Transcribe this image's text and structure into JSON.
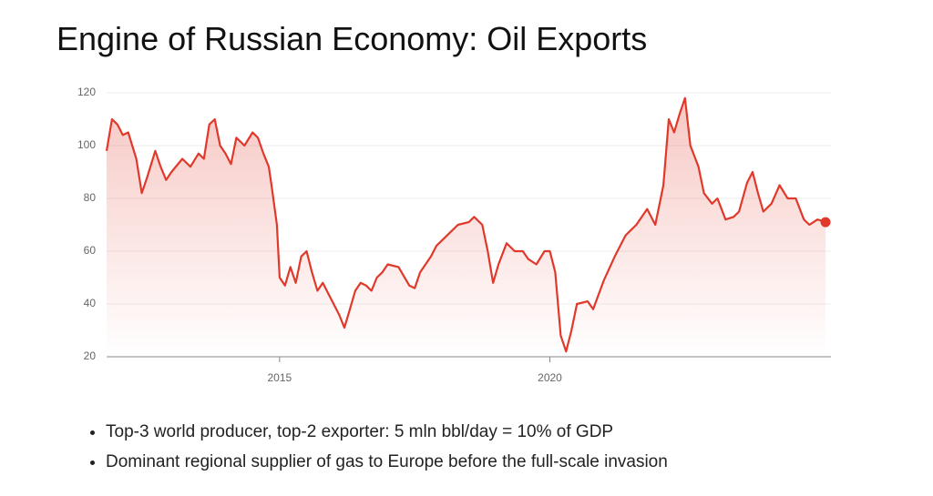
{
  "chart_data": {
    "type": "line",
    "title": "Engine of Russian Economy: Oil Exports",
    "x": [
      2011.8,
      2011.9,
      2012.0,
      2012.1,
      2012.2,
      2012.35,
      2012.45,
      2012.55,
      2012.7,
      2012.8,
      2012.9,
      2013.0,
      2013.2,
      2013.35,
      2013.5,
      2013.6,
      2013.7,
      2013.8,
      2013.9,
      2014.0,
      2014.1,
      2014.2,
      2014.35,
      2014.5,
      2014.6,
      2014.7,
      2014.8,
      2014.85,
      2014.95,
      2015.0,
      2015.1,
      2015.2,
      2015.3,
      2015.4,
      2015.5,
      2015.6,
      2015.7,
      2015.8,
      2015.9,
      2016.0,
      2016.1,
      2016.2,
      2016.3,
      2016.4,
      2016.5,
      2016.6,
      2016.7,
      2016.8,
      2016.9,
      2017.0,
      2017.2,
      2017.4,
      2017.5,
      2017.6,
      2017.8,
      2017.9,
      2018.1,
      2018.3,
      2018.5,
      2018.6,
      2018.75,
      2018.85,
      2018.95,
      2019.05,
      2019.2,
      2019.35,
      2019.5,
      2019.6,
      2019.75,
      2019.9,
      2020.0,
      2020.1,
      2020.2,
      2020.3,
      2020.4,
      2020.5,
      2020.7,
      2020.8,
      2021.0,
      2021.2,
      2021.4,
      2021.6,
      2021.8,
      2021.95,
      2022.1,
      2022.2,
      2022.3,
      2022.4,
      2022.5,
      2022.6,
      2022.75,
      2022.85,
      2023.0,
      2023.1,
      2023.25,
      2023.4,
      2023.5,
      2023.65,
      2023.75,
      2023.85,
      2023.95,
      2024.1,
      2024.25,
      2024.4,
      2024.55,
      2024.7,
      2024.8,
      2024.95,
      2025.1
    ],
    "series": [
      {
        "color": "#e0392b",
        "values": [
          98,
          110,
          108,
          104,
          105,
          95,
          82,
          88,
          98,
          92,
          87,
          90,
          95,
          92,
          97,
          95,
          108,
          110,
          100,
          97,
          93,
          103,
          100,
          105,
          103,
          97,
          92,
          85,
          70,
          50,
          47,
          54,
          48,
          58,
          60,
          52,
          45,
          48,
          44,
          40,
          36,
          31,
          38,
          45,
          48,
          47,
          45,
          50,
          52,
          55,
          54,
          47,
          46,
          52,
          58,
          62,
          66,
          70,
          71,
          73,
          70,
          60,
          48,
          55,
          63,
          60,
          60,
          57,
          55,
          60,
          60,
          52,
          28,
          22,
          30,
          40,
          41,
          38,
          49,
          58,
          66,
          70,
          76,
          70,
          85,
          110,
          105,
          112,
          118,
          100,
          92,
          82,
          78,
          80,
          72,
          73,
          75,
          86,
          90,
          82,
          75,
          78,
          85,
          80,
          80,
          72,
          70,
          72,
          71
        ]
      }
    ],
    "xlim": [
      2011.8,
      2025.2
    ],
    "xticks": [
      2015,
      2020
    ],
    "ylim": [
      20,
      120
    ],
    "yticks": [
      20,
      40,
      60,
      80,
      100,
      120
    ],
    "grid": true
  },
  "bullets": [
    "Top-3 world producer, top-2 exporter: 5 mln bbl/day = 10% of GDP",
    "Dominant regional supplier of gas to Europe before the full-scale invasion"
  ]
}
